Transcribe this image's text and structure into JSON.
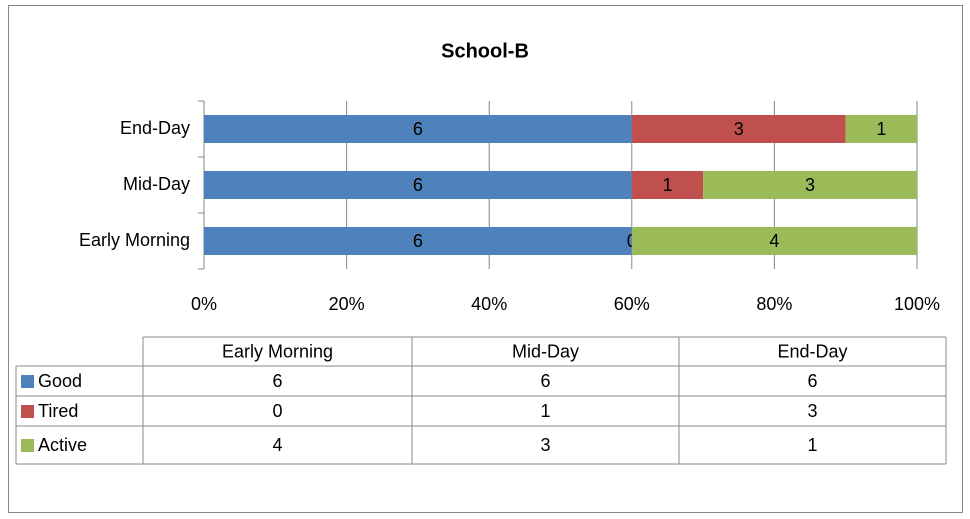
{
  "chart_data": {
    "type": "bar",
    "orientation": "horizontal",
    "stacked": "percent",
    "title": "School-B",
    "categories": [
      "Early Morning",
      "Mid-Day",
      "End-Day"
    ],
    "series": [
      {
        "name": "Good",
        "color": "#4f81bd",
        "values": [
          6,
          6,
          6
        ]
      },
      {
        "name": "Tired",
        "color": "#c0504d",
        "values": [
          0,
          1,
          3
        ]
      },
      {
        "name": "Active",
        "color": "#9bbb59",
        "values": [
          4,
          3,
          1
        ]
      }
    ],
    "xlim": [
      0,
      100
    ],
    "xticks": [
      {
        "value": 0,
        "label": "0%"
      },
      {
        "value": 20,
        "label": "20%"
      },
      {
        "value": 40,
        "label": "40%"
      },
      {
        "value": 60,
        "label": "60%"
      },
      {
        "value": 80,
        "label": "80%"
      },
      {
        "value": 100,
        "label": "100%"
      }
    ],
    "grid": true,
    "data_table": true
  }
}
